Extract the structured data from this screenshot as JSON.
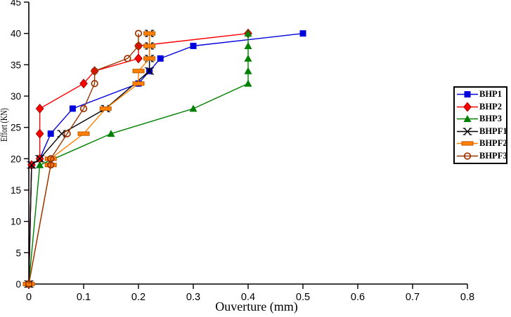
{
  "chart_data": {
    "type": "line",
    "title": "",
    "xlabel": "Ouverture (mm)",
    "ylabel": "Effort (KN)",
    "xlim": [
      0,
      0.8
    ],
    "ylim": [
      0,
      45
    ],
    "xticks": [
      0,
      0.1,
      0.2,
      0.3,
      0.4,
      0.5,
      0.6,
      0.7,
      0.8
    ],
    "yticks": [
      0,
      5,
      10,
      15,
      20,
      25,
      30,
      35,
      40,
      45
    ],
    "grid": false,
    "legend_position": "right",
    "axis_color": "#000000",
    "background_color": "#FFFFFF",
    "series": [
      {
        "name": "BHP1",
        "marker": "square",
        "color": "#0000DD",
        "marker_fill": "#0000DD",
        "marker_stroke": "#0000AA",
        "points": [
          [
            0,
            0
          ],
          [
            0.005,
            19
          ],
          [
            0.02,
            20
          ],
          [
            0.04,
            24
          ],
          [
            0.08,
            28
          ],
          [
            0.2,
            32
          ],
          [
            0.22,
            34
          ],
          [
            0.24,
            36
          ],
          [
            0.3,
            38
          ],
          [
            0.5,
            40
          ]
        ]
      },
      {
        "name": "BHP2",
        "marker": "diamond",
        "color": "#FF0000",
        "marker_fill": "#FF0000",
        "marker_stroke": "#A00000",
        "points": [
          [
            0,
            0
          ],
          [
            0.005,
            19
          ],
          [
            0.02,
            20
          ],
          [
            0.02,
            24
          ],
          [
            0.02,
            28
          ],
          [
            0.1,
            32
          ],
          [
            0.12,
            34
          ],
          [
            0.2,
            36
          ],
          [
            0.2,
            38
          ],
          [
            0.4,
            40
          ]
        ]
      },
      {
        "name": "BHP3",
        "marker": "triangle",
        "color": "#008000",
        "marker_fill": "#008000",
        "marker_stroke": "#006000",
        "points": [
          [
            0,
            0
          ],
          [
            0.02,
            19
          ],
          [
            0.15,
            24
          ],
          [
            0.3,
            28
          ],
          [
            0.4,
            32
          ],
          [
            0.4,
            34
          ],
          [
            0.4,
            36
          ],
          [
            0.4,
            38
          ],
          [
            0.4,
            40
          ]
        ]
      },
      {
        "name": "BHPF1",
        "marker": "x",
        "color": "#000000",
        "marker_fill": "none",
        "marker_stroke": "#000000",
        "points": [
          [
            0,
            0
          ],
          [
            0.005,
            19
          ],
          [
            0.02,
            20
          ],
          [
            0.06,
            24
          ],
          [
            0.14,
            28
          ],
          [
            0.22,
            34
          ],
          [
            0.22,
            36
          ],
          [
            0.22,
            38
          ],
          [
            0.22,
            40
          ]
        ]
      },
      {
        "name": "BHPF2",
        "marker": "dash",
        "color": "#FF8000",
        "marker_fill": "#FF8000",
        "marker_stroke": "#C05A00",
        "points": [
          [
            0,
            0
          ],
          [
            0.04,
            19
          ],
          [
            0.04,
            20
          ],
          [
            0.1,
            24
          ],
          [
            0.14,
            28
          ],
          [
            0.2,
            32
          ],
          [
            0.2,
            34
          ],
          [
            0.22,
            36
          ],
          [
            0.22,
            38
          ],
          [
            0.22,
            40
          ]
        ]
      },
      {
        "name": "BHPF3",
        "marker": "circle-open",
        "color": "#993300",
        "marker_fill": "none",
        "marker_stroke": "#993300",
        "points": [
          [
            0,
            0
          ],
          [
            0.04,
            19
          ],
          [
            0.04,
            20
          ],
          [
            0.07,
            24
          ],
          [
            0.1,
            28
          ],
          [
            0.12,
            32
          ],
          [
            0.12,
            34
          ],
          [
            0.18,
            36
          ],
          [
            0.2,
            38
          ],
          [
            0.2,
            40
          ]
        ]
      }
    ]
  }
}
